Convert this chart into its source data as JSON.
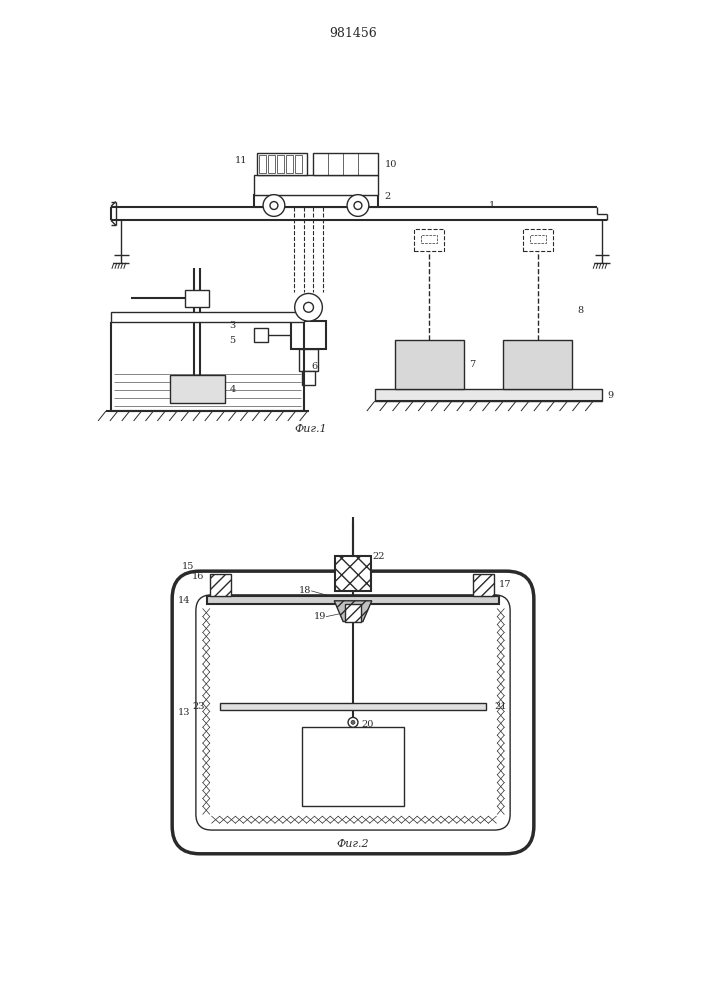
{
  "title": "981456",
  "fig1_caption": "Фиг.1",
  "fig2_caption": "Фиг.2",
  "bg_color": "#ffffff",
  "line_color": "#2a2a2a"
}
